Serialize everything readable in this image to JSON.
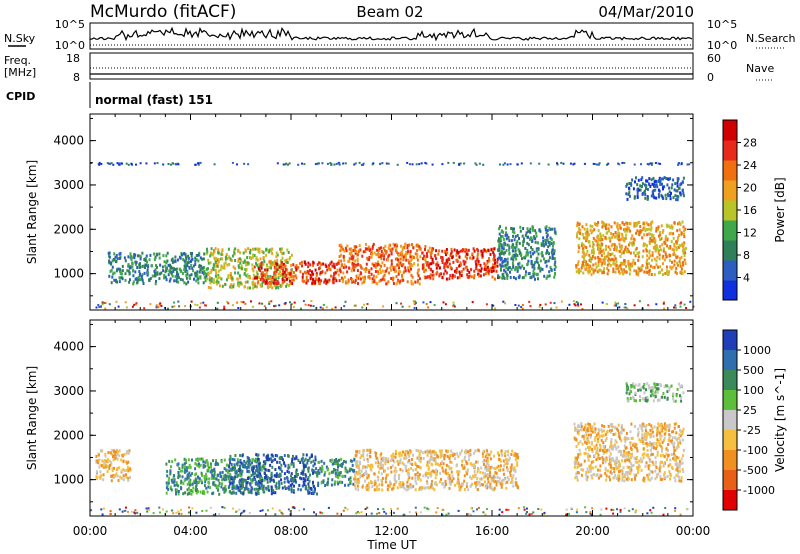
{
  "header": {
    "station": "McMurdo (fitACF)",
    "beam": "Beam 02",
    "date": "04/Mar/2010"
  },
  "noise_panel": {
    "left_label": "N.Sky",
    "right_label": "N.Search",
    "left_ticks": [
      "10^5",
      "10^0"
    ],
    "right_ticks": [
      "10^5",
      "10^0"
    ]
  },
  "freq_panel": {
    "left_label_1": "Freq.",
    "left_label_2": "[MHz]",
    "right_label": "Nave",
    "left_ticks": [
      "18",
      "8"
    ],
    "right_ticks": [
      "60",
      "0"
    ]
  },
  "cpid_panel": {
    "label": "CPID",
    "value": "normal (fast) 151"
  },
  "chart_data": [
    {
      "type": "heatmap",
      "title": "",
      "variable": "Power",
      "xlabel": "Time UT",
      "ylabel": "Slant Range [km]",
      "colorbar_label": "Power [dB]",
      "x_ticks": [
        "00:00",
        "04:00",
        "08:00",
        "12:00",
        "16:00",
        "20:00",
        "00:00"
      ],
      "x_range_hours": [
        0,
        24
      ],
      "y_ticks": [
        1000,
        2000,
        3000,
        4000
      ],
      "y_range_km": [
        180,
        4600
      ],
      "colorbar_ticks": [
        "4",
        "8",
        "12",
        "16",
        "20",
        "24",
        "28"
      ],
      "colorbar_range": [
        0,
        32
      ],
      "colorbar_colors": [
        "#1030e0",
        "#2b5ec0",
        "#2f7f5a",
        "#3fa84a",
        "#b8c428",
        "#f0a020",
        "#f07010",
        "#e82a1a",
        "#d00000"
      ],
      "echo_regions": [
        {
          "t": [
            0.7,
            4.6
          ],
          "r": [
            800,
            1500
          ],
          "level": 7
        },
        {
          "t": [
            4.6,
            8.0
          ],
          "r": [
            700,
            1600
          ],
          "level": 17
        },
        {
          "t": [
            6.5,
            9.8
          ],
          "r": [
            800,
            1300
          ],
          "level": 26
        },
        {
          "t": [
            9.8,
            13.5
          ],
          "r": [
            800,
            1700
          ],
          "level": 22
        },
        {
          "t": [
            13.5,
            16.2
          ],
          "r": [
            900,
            1600
          ],
          "level": 26
        },
        {
          "t": [
            16.2,
            18.5
          ],
          "r": [
            900,
            2100
          ],
          "level": 9
        },
        {
          "t": [
            19.3,
            23.7
          ],
          "r": [
            1000,
            2200
          ],
          "level": 18
        },
        {
          "t": [
            21.3,
            23.6
          ],
          "r": [
            2700,
            3200
          ],
          "level": 5
        },
        {
          "t": [
            0.0,
            24.0
          ],
          "r": [
            3500,
            3520
          ],
          "level": 5
        }
      ]
    },
    {
      "type": "heatmap",
      "title": "",
      "variable": "Velocity",
      "xlabel": "Time UT",
      "ylabel": "Slant Range [km]",
      "colorbar_label": "Velocity [m s^-1]",
      "x_ticks": [
        "00:00",
        "04:00",
        "08:00",
        "12:00",
        "16:00",
        "20:00",
        "00:00"
      ],
      "x_range_hours": [
        0,
        24
      ],
      "y_ticks": [
        1000,
        2000,
        3000,
        4000
      ],
      "y_range_km": [
        180,
        4600
      ],
      "colorbar_ticks": [
        "1000",
        "500",
        "100",
        "25",
        "-25",
        "-100",
        "-500",
        "-1000"
      ],
      "colorbar_colors": [
        "#1f3fb8",
        "#2f6fb0",
        "#3a8a5a",
        "#5cbf3a",
        "#c8c8c8",
        "#f5c040",
        "#f09020",
        "#e86018",
        "#e00000"
      ],
      "echo_regions": [
        {
          "t": [
            0.2,
            1.6
          ],
          "r": [
            1000,
            1700
          ],
          "level": "-100"
        },
        {
          "t": [
            3.0,
            7.0
          ],
          "r": [
            700,
            1500
          ],
          "level": "100"
        },
        {
          "t": [
            5.5,
            9.0
          ],
          "r": [
            700,
            1600
          ],
          "level": "500"
        },
        {
          "t": [
            9.0,
            10.5
          ],
          "r": [
            900,
            1500
          ],
          "level": "100"
        },
        {
          "t": [
            10.5,
            17.0
          ],
          "r": [
            800,
            1700
          ],
          "level": "-100"
        },
        {
          "t": [
            19.2,
            23.6
          ],
          "r": [
            1000,
            2300
          ],
          "level": "-100"
        },
        {
          "t": [
            21.3,
            23.6
          ],
          "r": [
            2800,
            3200
          ],
          "level": "25"
        }
      ]
    }
  ]
}
